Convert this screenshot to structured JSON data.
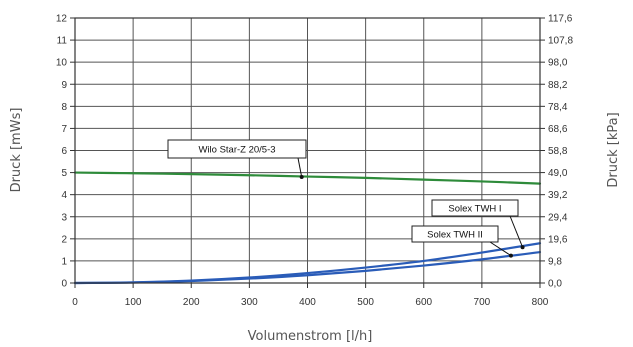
{
  "chart_data": {
    "type": "line",
    "xlabel": "Volumenstrom [l/h]",
    "ylabel": "Druck [mWs]",
    "ylabel_right": "Druck [kPa]",
    "xlim": [
      0,
      800
    ],
    "ylim": [
      0,
      12
    ],
    "grid": true,
    "x_ticks": [
      0,
      100,
      200,
      300,
      400,
      500,
      600,
      700,
      800
    ],
    "y_ticks": [
      0,
      1,
      2,
      3,
      4,
      5,
      6,
      7,
      8,
      9,
      10,
      11,
      12
    ],
    "y_right_ticks": [
      "0,0",
      "9,8",
      "19,6",
      "29,4",
      "39,2",
      "49,0",
      "58,8",
      "68,6",
      "78,4",
      "88,2",
      "98,0",
      "107,8",
      "117,6"
    ],
    "series": [
      {
        "name": "Wilo Star-Z 20/5-3",
        "color": "#2e8b3a",
        "x": [
          0,
          100,
          200,
          300,
          400,
          500,
          600,
          700,
          800
        ],
        "y": [
          5.0,
          4.97,
          4.93,
          4.88,
          4.82,
          4.76,
          4.68,
          4.6,
          4.5
        ]
      },
      {
        "name": "Solex TWH I",
        "color": "#2a5cb8",
        "x": [
          0,
          100,
          200,
          300,
          400,
          500,
          600,
          700,
          800
        ],
        "y": [
          0,
          0.03,
          0.11,
          0.25,
          0.45,
          0.7,
          1.0,
          1.38,
          1.8
        ]
      },
      {
        "name": "Solex TWH II",
        "color": "#2a5cb8",
        "x": [
          0,
          100,
          200,
          300,
          400,
          500,
          600,
          700,
          800
        ],
        "y": [
          0,
          0.02,
          0.09,
          0.2,
          0.35,
          0.55,
          0.79,
          1.07,
          1.4
        ]
      }
    ],
    "annotations": [
      {
        "text": "Wilo Star-Z 20/5-3",
        "series": 0,
        "target_x": 390,
        "target_y": 4.8
      },
      {
        "text": "Solex TWH I",
        "series": 1,
        "target_x": 770,
        "target_y": 1.62
      },
      {
        "text": "Solex TWH II",
        "series": 2,
        "target_x": 750,
        "target_y": 1.24
      }
    ]
  }
}
